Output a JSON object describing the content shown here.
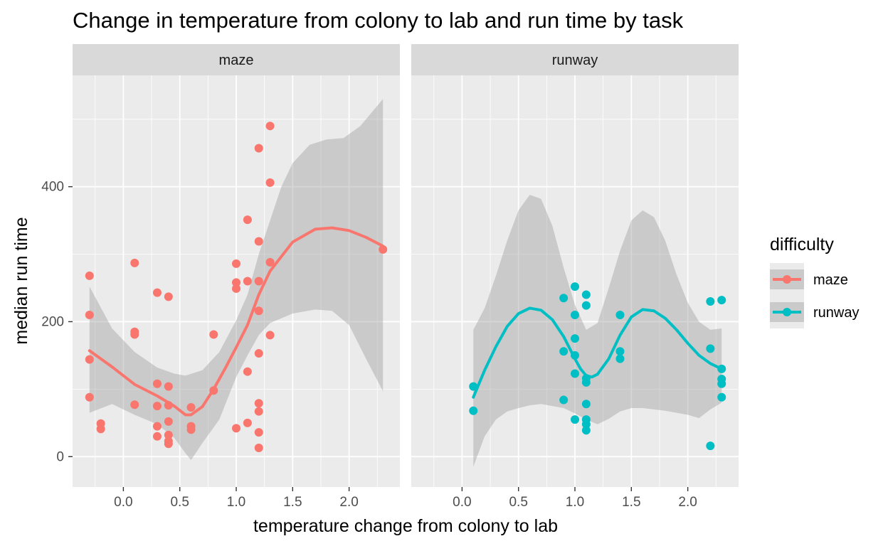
{
  "chart_data": {
    "type": "scatter",
    "title": "Change in temperature from colony to lab and run time by task",
    "xlabel": "temperature change from colony to lab",
    "ylabel": "median run time",
    "xlim": [
      -0.45,
      2.45
    ],
    "ylim": [
      -45,
      565
    ],
    "x_ticks": [
      0.0,
      0.5,
      1.0,
      1.5,
      2.0
    ],
    "x_tick_labels": [
      "0.0",
      "0.5",
      "1.0",
      "1.5",
      "2.0"
    ],
    "y_ticks": [
      0,
      200,
      400
    ],
    "y_tick_labels": [
      "0",
      "200",
      "400"
    ],
    "grid": true,
    "legend": {
      "title": "difficulty",
      "position": "right",
      "entries": [
        {
          "label": "maze",
          "color": "#F8766D"
        },
        {
          "label": "runway",
          "color": "#00BFC4"
        }
      ]
    },
    "panels": [
      {
        "strip": "maze",
        "series": "maze",
        "color": "#F8766D",
        "points": [
          [
            -0.3,
            268
          ],
          [
            -0.3,
            210
          ],
          [
            -0.3,
            144
          ],
          [
            -0.3,
            88
          ],
          [
            -0.2,
            49
          ],
          [
            -0.2,
            41
          ],
          [
            0.1,
            287
          ],
          [
            0.1,
            185
          ],
          [
            0.1,
            181
          ],
          [
            0.1,
            77
          ],
          [
            0.3,
            243
          ],
          [
            0.3,
            108
          ],
          [
            0.3,
            75
          ],
          [
            0.3,
            45
          ],
          [
            0.3,
            30
          ],
          [
            0.4,
            237
          ],
          [
            0.4,
            104
          ],
          [
            0.4,
            76
          ],
          [
            0.4,
            52
          ],
          [
            0.4,
            32
          ],
          [
            0.4,
            23
          ],
          [
            0.4,
            19
          ],
          [
            0.6,
            73
          ],
          [
            0.6,
            45
          ],
          [
            0.6,
            40
          ],
          [
            0.8,
            181
          ],
          [
            0.8,
            98
          ],
          [
            1.0,
            286
          ],
          [
            1.0,
            258
          ],
          [
            1.0,
            249
          ],
          [
            1.0,
            42
          ],
          [
            1.1,
            351
          ],
          [
            1.1,
            260
          ],
          [
            1.1,
            126
          ],
          [
            1.1,
            50
          ],
          [
            1.2,
            457
          ],
          [
            1.2,
            319
          ],
          [
            1.2,
            260
          ],
          [
            1.2,
            216
          ],
          [
            1.2,
            153
          ],
          [
            1.2,
            79
          ],
          [
            1.2,
            67
          ],
          [
            1.2,
            36
          ],
          [
            1.2,
            13
          ],
          [
            1.3,
            490
          ],
          [
            1.3,
            406
          ],
          [
            1.3,
            288
          ],
          [
            1.3,
            180
          ],
          [
            2.3,
            307
          ]
        ],
        "smooth": [
          [
            -0.3,
            157
          ],
          [
            -0.1,
            133
          ],
          [
            0.1,
            107
          ],
          [
            0.3,
            90
          ],
          [
            0.45,
            75
          ],
          [
            0.55,
            62
          ],
          [
            0.6,
            62
          ],
          [
            0.7,
            74
          ],
          [
            0.8,
            100
          ],
          [
            0.9,
            130
          ],
          [
            1.0,
            162
          ],
          [
            1.1,
            195
          ],
          [
            1.2,
            240
          ],
          [
            1.3,
            275
          ],
          [
            1.5,
            318
          ],
          [
            1.7,
            337
          ],
          [
            1.85,
            339
          ],
          [
            2.0,
            335
          ],
          [
            2.15,
            325
          ],
          [
            2.3,
            312
          ]
        ],
        "band_upper": [
          [
            -0.3,
            252
          ],
          [
            -0.1,
            190
          ],
          [
            0.1,
            155
          ],
          [
            0.3,
            132
          ],
          [
            0.45,
            123
          ],
          [
            0.55,
            120
          ],
          [
            0.7,
            128
          ],
          [
            0.85,
            155
          ],
          [
            1.0,
            202
          ],
          [
            1.1,
            240
          ],
          [
            1.2,
            300
          ],
          [
            1.3,
            350
          ],
          [
            1.4,
            400
          ],
          [
            1.5,
            435
          ],
          [
            1.65,
            462
          ],
          [
            1.8,
            470
          ],
          [
            1.95,
            472
          ],
          [
            2.1,
            490
          ],
          [
            2.3,
            530
          ]
        ],
        "band_lower": [
          [
            -0.3,
            65
          ],
          [
            -0.1,
            78
          ],
          [
            0.1,
            62
          ],
          [
            0.3,
            48
          ],
          [
            0.45,
            28
          ],
          [
            0.55,
            5
          ],
          [
            0.6,
            -5
          ],
          [
            0.7,
            20
          ],
          [
            0.85,
            55
          ],
          [
            1.0,
            118
          ],
          [
            1.1,
            150
          ],
          [
            1.2,
            180
          ],
          [
            1.3,
            198
          ],
          [
            1.5,
            212
          ],
          [
            1.7,
            218
          ],
          [
            1.85,
            216
          ],
          [
            2.0,
            195
          ],
          [
            2.15,
            145
          ],
          [
            2.3,
            97
          ]
        ]
      },
      {
        "strip": "runway",
        "series": "runway",
        "color": "#00BFC4",
        "points": [
          [
            0.1,
            104
          ],
          [
            0.1,
            68
          ],
          [
            0.9,
            235
          ],
          [
            0.9,
            156
          ],
          [
            0.9,
            84
          ],
          [
            1.0,
            252
          ],
          [
            1.0,
            210
          ],
          [
            1.0,
            175
          ],
          [
            1.0,
            150
          ],
          [
            1.0,
            123
          ],
          [
            1.0,
            55
          ],
          [
            1.1,
            240
          ],
          [
            1.1,
            224
          ],
          [
            1.1,
            116
          ],
          [
            1.1,
            110
          ],
          [
            1.1,
            78
          ],
          [
            1.1,
            55
          ],
          [
            1.1,
            48
          ],
          [
            1.1,
            39
          ],
          [
            1.4,
            210
          ],
          [
            1.4,
            156
          ],
          [
            1.4,
            145
          ],
          [
            2.2,
            230
          ],
          [
            2.2,
            160
          ],
          [
            2.2,
            16
          ],
          [
            2.3,
            232
          ],
          [
            2.3,
            130
          ],
          [
            2.3,
            115
          ],
          [
            2.3,
            108
          ],
          [
            2.3,
            88
          ]
        ],
        "smooth": [
          [
            0.1,
            88
          ],
          [
            0.2,
            128
          ],
          [
            0.3,
            163
          ],
          [
            0.4,
            193
          ],
          [
            0.5,
            212
          ],
          [
            0.6,
            220
          ],
          [
            0.7,
            217
          ],
          [
            0.8,
            203
          ],
          [
            0.9,
            178
          ],
          [
            1.0,
            145
          ],
          [
            1.05,
            130
          ],
          [
            1.1,
            120
          ],
          [
            1.15,
            118
          ],
          [
            1.2,
            122
          ],
          [
            1.3,
            145
          ],
          [
            1.4,
            180
          ],
          [
            1.5,
            207
          ],
          [
            1.6,
            218
          ],
          [
            1.7,
            216
          ],
          [
            1.8,
            205
          ],
          [
            1.9,
            188
          ],
          [
            2.0,
            168
          ],
          [
            2.1,
            150
          ],
          [
            2.2,
            138
          ],
          [
            2.3,
            130
          ]
        ],
        "band_upper": [
          [
            0.1,
            188
          ],
          [
            0.2,
            220
          ],
          [
            0.3,
            268
          ],
          [
            0.4,
            320
          ],
          [
            0.5,
            365
          ],
          [
            0.6,
            388
          ],
          [
            0.7,
            382
          ],
          [
            0.8,
            342
          ],
          [
            0.9,
            280
          ],
          [
            1.0,
            225
          ],
          [
            1.1,
            188
          ],
          [
            1.2,
            198
          ],
          [
            1.3,
            250
          ],
          [
            1.4,
            305
          ],
          [
            1.5,
            350
          ],
          [
            1.6,
            365
          ],
          [
            1.7,
            355
          ],
          [
            1.8,
            320
          ],
          [
            1.9,
            270
          ],
          [
            2.0,
            228
          ],
          [
            2.1,
            200
          ],
          [
            2.2,
            188
          ],
          [
            2.3,
            190
          ]
        ],
        "band_lower": [
          [
            0.1,
            -15
          ],
          [
            0.2,
            30
          ],
          [
            0.3,
            55
          ],
          [
            0.4,
            67
          ],
          [
            0.5,
            72
          ],
          [
            0.6,
            76
          ],
          [
            0.7,
            78
          ],
          [
            0.8,
            75
          ],
          [
            0.9,
            72
          ],
          [
            1.0,
            64
          ],
          [
            1.1,
            55
          ],
          [
            1.2,
            48
          ],
          [
            1.3,
            56
          ],
          [
            1.4,
            67
          ],
          [
            1.5,
            72
          ],
          [
            1.6,
            72
          ],
          [
            1.7,
            70
          ],
          [
            1.8,
            68
          ],
          [
            1.9,
            65
          ],
          [
            2.0,
            62
          ],
          [
            2.1,
            57
          ],
          [
            2.2,
            70
          ],
          [
            2.3,
            80
          ]
        ]
      }
    ]
  }
}
